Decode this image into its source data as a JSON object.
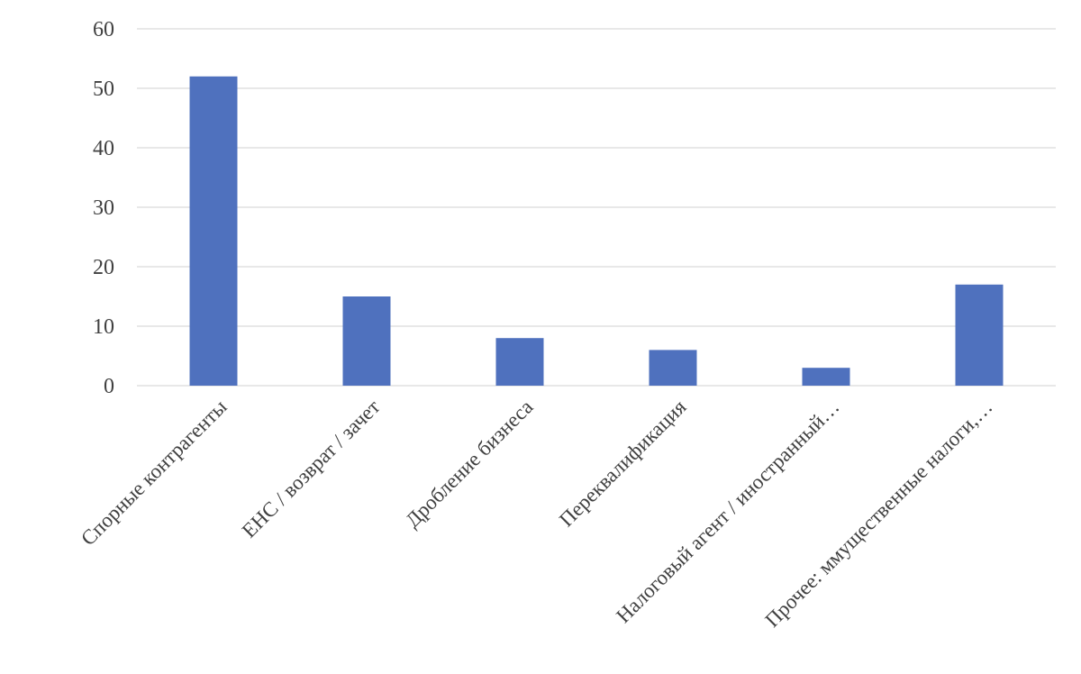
{
  "chart_data": {
    "type": "bar",
    "categories": [
      "Спорные контрагенты",
      "ЕНС / возврат / зачет",
      "Дробление бизнеса",
      "Переквалификация",
      "Налоговый агент / иностранный…",
      "Прочее: ммущественные налоги,…"
    ],
    "values": [
      52,
      15,
      8,
      6,
      3,
      17
    ],
    "title": "",
    "xlabel": "",
    "ylabel": "",
    "ylim": [
      0,
      60
    ],
    "yticks": [
      0,
      10,
      20,
      30,
      40,
      50,
      60
    ],
    "grid": true,
    "legend": "none",
    "bar_color": "#4f71be",
    "grid_color": "#d9d9d9",
    "text_color": "#404040"
  }
}
